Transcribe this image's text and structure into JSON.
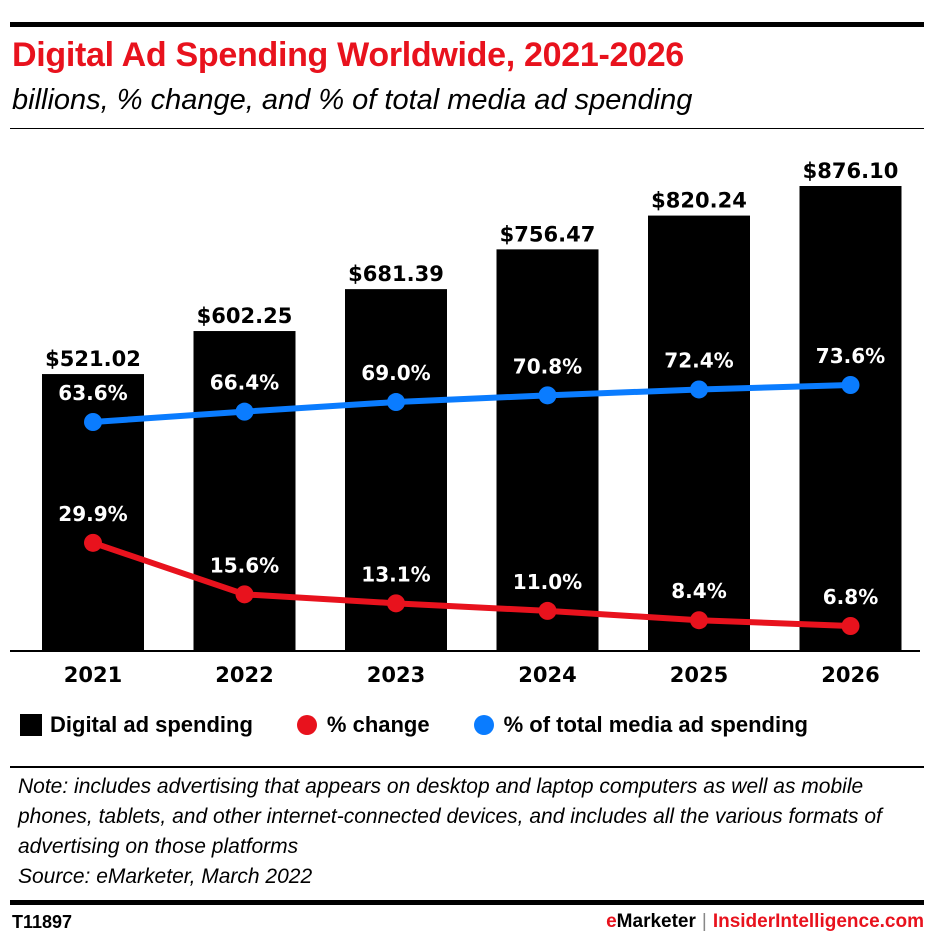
{
  "header": {
    "title": "Digital Ad Spending Worldwide, 2021-2026",
    "subtitle": "billions, % change, and % of total media ad spending"
  },
  "colors": {
    "title_red": "#e8121d",
    "bar": "#000000",
    "change_line": "#e8121d",
    "share_line": "#0a7cff"
  },
  "chart_data": {
    "type": "bar",
    "title": "Digital Ad Spending Worldwide, 2021-2026",
    "subtitle": "billions, % change, and % of total media ad spending",
    "categories": [
      "2021",
      "2022",
      "2023",
      "2024",
      "2025",
      "2026"
    ],
    "ylim": [
      0,
      950
    ],
    "grid": false,
    "legend_position": "bottom-left",
    "series": [
      {
        "name": "Digital ad spending",
        "type": "bar",
        "unit": "billions USD",
        "values": [
          521.02,
          602.25,
          681.39,
          756.47,
          820.24,
          876.1
        ],
        "labels": [
          "$521.02",
          "$602.25",
          "$681.39",
          "$756.47",
          "$820.24",
          "$876.10"
        ]
      },
      {
        "name": "% change",
        "type": "line",
        "unit": "percent",
        "values": [
          29.9,
          15.6,
          13.1,
          11.0,
          8.4,
          6.8
        ],
        "labels": [
          "29.9%",
          "15.6%",
          "13.1%",
          "11.0%",
          "8.4%",
          "6.8%"
        ]
      },
      {
        "name": "% of total media ad spending",
        "type": "line",
        "unit": "percent",
        "values": [
          63.6,
          66.4,
          69.0,
          70.8,
          72.4,
          73.6
        ],
        "labels": [
          "63.6%",
          "66.4%",
          "69.0%",
          "70.8%",
          "72.4%",
          "73.6%"
        ]
      }
    ]
  },
  "legend": {
    "items": [
      {
        "label": "Digital ad spending",
        "icon": "black-square"
      },
      {
        "label": "% change",
        "icon": "red-dot"
      },
      {
        "label": "% of total media ad spending",
        "icon": "blue-dot"
      }
    ]
  },
  "footer": {
    "note": "Note: includes advertising that appears on desktop and laptop computers as well as mobile phones, tablets, and other internet-connected devices, and includes all the various formats of advertising on those platforms",
    "source": "Source: eMarketer, March 2022",
    "chart_id": "T11897",
    "brand_primary": "eMarketer",
    "brand_separator": "|",
    "brand_site": "InsiderIntelligence.com"
  }
}
